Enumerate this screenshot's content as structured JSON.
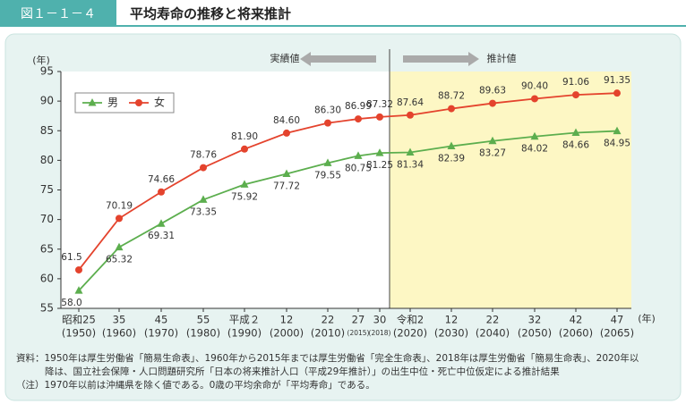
{
  "header": {
    "figure_label": "図１－１－４",
    "title": "平均寿命の推移と将来推計"
  },
  "chart_data": {
    "type": "line",
    "y_unit": "(年)",
    "x_unit": "(年)",
    "annotations": [
      "実績値",
      "推計値"
    ],
    "categories": [
      "昭和25",
      "35",
      "45",
      "55",
      "平成２",
      "12",
      "22",
      "27",
      "30",
      "令和2",
      "12",
      "22",
      "32",
      "42",
      "47"
    ],
    "category_years": [
      "(1950)",
      "(1960)",
      "(1970)",
      "(1980)",
      "(1990)",
      "(2000)",
      "(2010)",
      "(2015)",
      "(2018)",
      "(2020)",
      "(2030)",
      "(2040)",
      "(2050)",
      "(2060)",
      "(2065)"
    ],
    "series": [
      {
        "name": "男",
        "color": "#5cae4e",
        "marker": "triangle",
        "values": [
          58.0,
          65.32,
          69.31,
          73.35,
          75.92,
          77.72,
          79.55,
          80.75,
          81.25,
          81.34,
          82.39,
          83.27,
          84.02,
          84.66,
          84.95
        ],
        "value_labels": [
          "58.0",
          "65.32",
          "69.31",
          "73.35",
          "75.92",
          "77.72",
          "79.55",
          "80.75",
          "81.25",
          "81.34",
          "82.39",
          "83.27",
          "84.02",
          "84.66",
          "84.95"
        ]
      },
      {
        "name": "女",
        "color": "#e4432d",
        "marker": "circle",
        "values": [
          61.5,
          70.19,
          74.66,
          78.76,
          81.9,
          84.6,
          86.3,
          86.99,
          87.32,
          87.64,
          88.72,
          89.63,
          90.4,
          91.06,
          91.35
        ],
        "value_labels": [
          "61.5",
          "70.19",
          "74.66",
          "78.76",
          "81.90",
          "84.60",
          "86.30",
          "86.99",
          "87.32",
          "87.64",
          "88.72",
          "89.63",
          "90.40",
          "91.06",
          "91.35"
        ]
      }
    ],
    "ylim": [
      55,
      95
    ],
    "yticks": [
      55,
      60,
      65,
      70,
      75,
      80,
      85,
      90,
      95
    ],
    "grid": false
  },
  "notes": [
    "資料：1950年は厚生労働省「簡易生命表」、1960年から2015年までは厚生労働省「完全生命表」、2018年は厚生労働省「簡易生命表」、2020年以",
    "降は、国立社会保障・人口問題研究所「日本の将来推計人口（平成29年推計）」の出生中位・死亡中位仮定による推計結果",
    "（注）1970年以前は沖縄県を除く値である。0歳の平均余命が「平均寿命」である。"
  ]
}
